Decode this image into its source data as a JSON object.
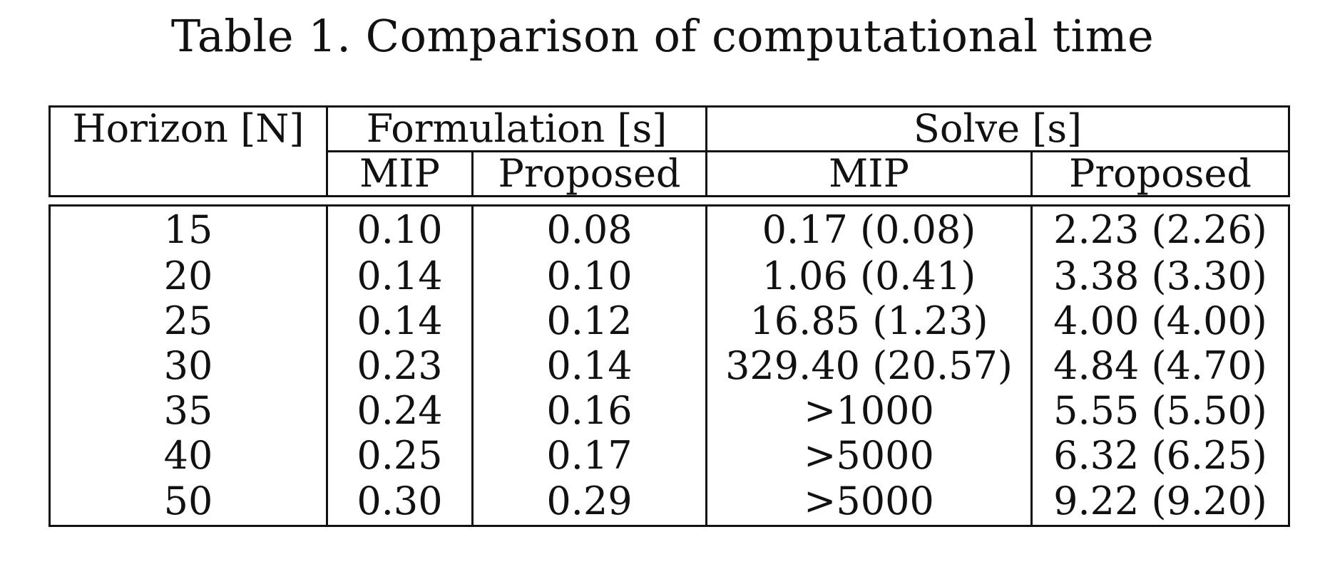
{
  "caption": "Table 1. Comparison of computational time",
  "header": {
    "horizon": "Horizon [N]",
    "formulation": "Formulation [s]",
    "solve": "Solve [s]",
    "formulation_mip": "MIP",
    "formulation_proposed": "Proposed",
    "solve_mip": "MIP",
    "solve_proposed": "Proposed"
  },
  "rows": [
    {
      "horizon": "15",
      "form_mip": "0.10",
      "form_proposed": "0.08",
      "solve_mip": "0.17 (0.08)",
      "solve_proposed": "2.23 (2.26)"
    },
    {
      "horizon": "20",
      "form_mip": "0.14",
      "form_proposed": "0.10",
      "solve_mip": "1.06 (0.41)",
      "solve_proposed": "3.38 (3.30)"
    },
    {
      "horizon": "25",
      "form_mip": "0.14",
      "form_proposed": "0.12",
      "solve_mip": "16.85 (1.23)",
      "solve_proposed": "4.00 (4.00)"
    },
    {
      "horizon": "30",
      "form_mip": "0.23",
      "form_proposed": "0.14",
      "solve_mip": "329.40 (20.57)",
      "solve_proposed": "4.84 (4.70)"
    },
    {
      "horizon": "35",
      "form_mip": "0.24",
      "form_proposed": "0.16",
      "solve_mip": ">1000",
      "solve_proposed": "5.55 (5.50)"
    },
    {
      "horizon": "40",
      "form_mip": "0.25",
      "form_proposed": "0.17",
      "solve_mip": ">5000",
      "solve_proposed": "6.32 (6.25)"
    },
    {
      "horizon": "50",
      "form_mip": "0.30",
      "form_proposed": "0.29",
      "solve_mip": ">5000",
      "solve_proposed": "9.22 (9.20)"
    }
  ]
}
